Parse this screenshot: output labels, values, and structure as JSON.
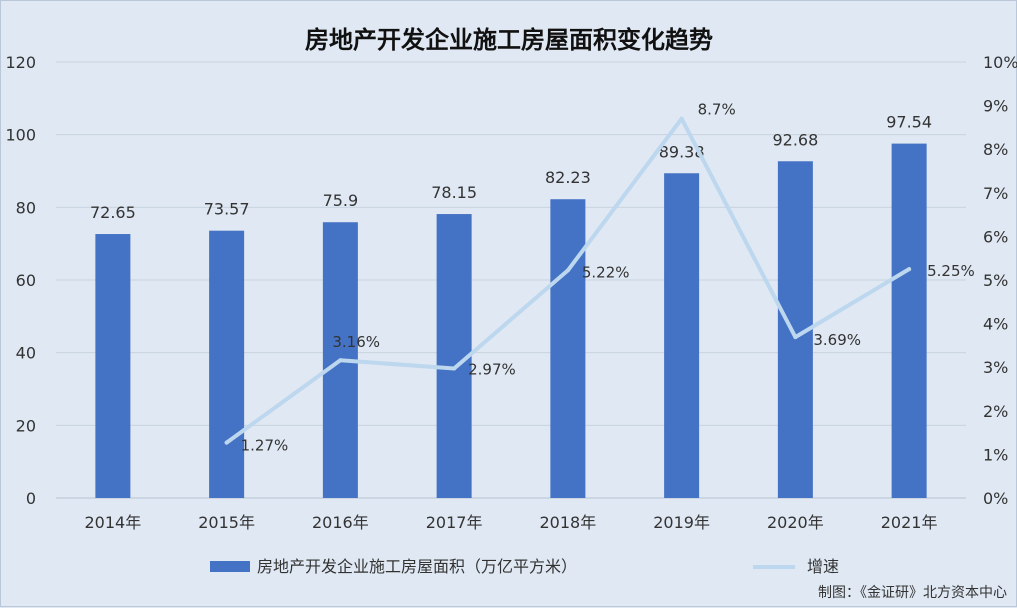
{
  "chart_data": {
    "type": "bar",
    "title": "房地产开发企业施工房屋面积变化趋势",
    "categories": [
      "2014年",
      "2015年",
      "2016年",
      "2017年",
      "2018年",
      "2019年",
      "2020年",
      "2021年"
    ],
    "series": [
      {
        "name": "房地产开发企业施工房屋面积（万亿平方米）",
        "type": "bar",
        "axis": "left",
        "color": "#4472c4",
        "values": [
          72.65,
          73.57,
          75.9,
          78.15,
          82.23,
          89.38,
          92.68,
          97.54
        ],
        "labels": [
          "72.65",
          "73.57",
          "75.9",
          "78.15",
          "82.23",
          "89.38",
          "92.68",
          "97.54"
        ]
      },
      {
        "name": "增速",
        "type": "line",
        "axis": "right",
        "color": "#bdd7ee",
        "values": [
          null,
          1.27,
          3.16,
          2.97,
          5.22,
          8.7,
          3.69,
          5.25
        ],
        "labels": [
          "",
          "1.27%",
          "3.16%",
          "2.97%",
          "5.22%",
          "8.7%",
          "3.69%",
          "5.25%"
        ]
      }
    ],
    "left_axis": {
      "min": 0,
      "max": 120,
      "ticks": [
        "0",
        "20",
        "40",
        "60",
        "80",
        "100",
        "120"
      ]
    },
    "right_axis": {
      "min": 0,
      "max": 10,
      "ticks": [
        "0%",
        "1%",
        "2%",
        "3%",
        "4%",
        "5%",
        "6%",
        "7%",
        "8%",
        "9%",
        "10%"
      ]
    },
    "grid": "horizontal",
    "legend_position": "bottom",
    "source": "制图：《金证研》北方资本中心"
  }
}
